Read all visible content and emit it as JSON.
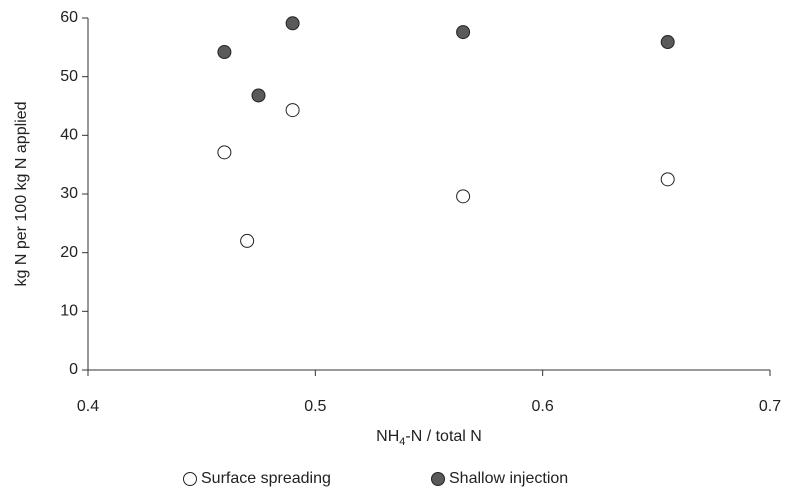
{
  "chart_data": {
    "type": "scatter",
    "x_label_parts": [
      "NH",
      "4",
      "-N / total N"
    ],
    "y_label": "kg N per 100 kg N applied",
    "xlim": [
      0.4,
      0.7
    ],
    "xticks": [
      0.4,
      0.5,
      0.6,
      0.7
    ],
    "ylim": [
      0,
      60
    ],
    "yticks": [
      0,
      10,
      20,
      30,
      40,
      50,
      60
    ],
    "grid": false,
    "legend": "bottom",
    "series": [
      {
        "name": "Surface spreading",
        "color": "#ffffff",
        "x": [
          0.46,
          0.47,
          0.49,
          0.565,
          0.655
        ],
        "values": [
          37.1,
          22.0,
          44.3,
          29.6,
          32.5
        ]
      },
      {
        "name": "Shallow injection",
        "color": "#5a5a5a",
        "x": [
          0.46,
          0.475,
          0.49,
          0.565,
          0.655
        ],
        "values": [
          54.2,
          46.8,
          59.1,
          57.6,
          55.9
        ]
      }
    ]
  }
}
